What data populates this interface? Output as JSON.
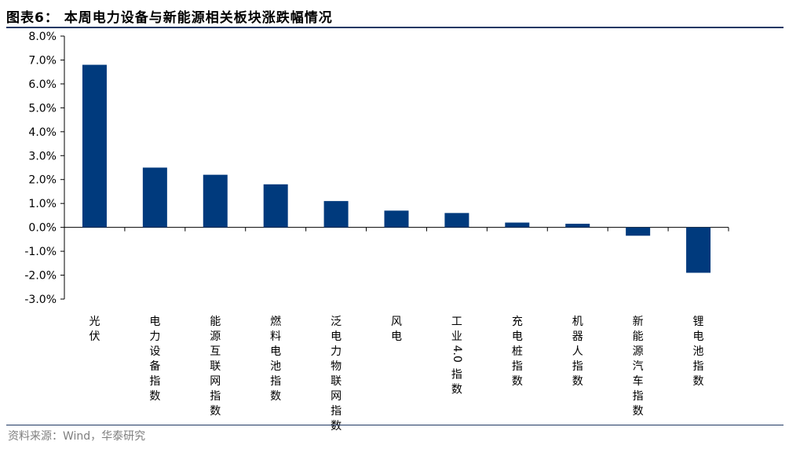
{
  "title": "图表6：  本周电力设备与新能源相关板块涨跌幅情况",
  "source": "资料来源：Wind，华泰研究",
  "colors": {
    "bar": "#003a7d",
    "rule": "#1f3864"
  },
  "chart_data": {
    "type": "bar",
    "categories": [
      "光伏",
      "电力设备指数",
      "能源互联网指数",
      "燃料电池指数",
      "泛电力物联网指数",
      "风电",
      "工业4.0指数",
      "充电桩指数",
      "机器人指数",
      "新能源汽车指数",
      "锂电池指数"
    ],
    "values": [
      6.8,
      2.5,
      2.2,
      1.8,
      1.1,
      0.7,
      0.6,
      0.2,
      0.15,
      -0.35,
      -1.9
    ],
    "ylim": [
      -3,
      8
    ],
    "yticks": [
      "8.0%",
      "7.0%",
      "6.0%",
      "5.0%",
      "4.0%",
      "3.0%",
      "2.0%",
      "1.0%",
      "0.0%",
      "-1.0%",
      "-2.0%",
      "-3.0%"
    ],
    "ytick_values": [
      8,
      7,
      6,
      5,
      4,
      3,
      2,
      1,
      0,
      -1,
      -2,
      -3
    ],
    "grid": false,
    "legend": "none"
  }
}
